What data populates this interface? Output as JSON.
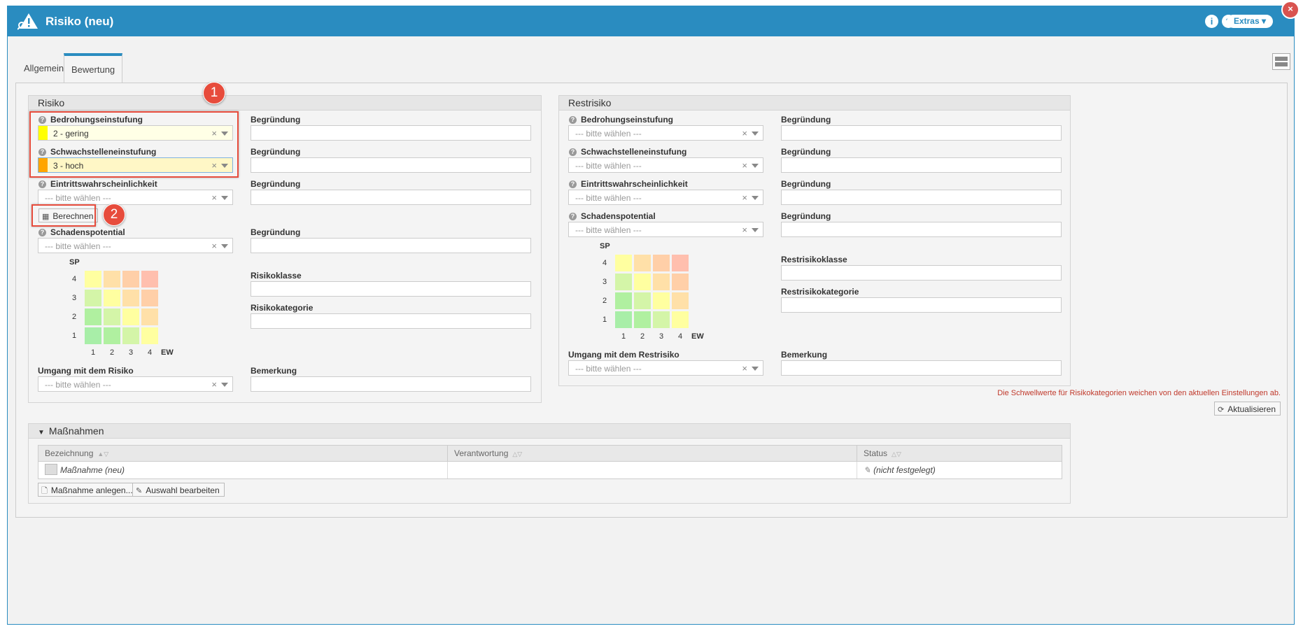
{
  "window": {
    "title": "Risiko (neu)",
    "info_icon": "info-icon",
    "help_icon": "help-icon",
    "extras_label": "Extras",
    "close_icon": "close-icon"
  },
  "tabs": [
    {
      "label": "Allgemein",
      "active": false
    },
    {
      "label": "Bewertung",
      "active": true
    }
  ],
  "risiko": {
    "header": "Risiko",
    "bedrohung": {
      "label": "Bedrohungseinstufung",
      "value": "2 - gering",
      "color": "#ffff00"
    },
    "bedrohung_begruendung": "Begründung",
    "schwachstelle": {
      "label": "Schwachstelleneinstufung",
      "value": "3 - hoch",
      "color": "#ffa500"
    },
    "schwachstelle_begruendung": "Begründung",
    "eintritt": {
      "label": "Eintrittswahrscheinlichkeit",
      "placeholder": "--- bitte wählen ---"
    },
    "eintritt_begruendung": "Begründung",
    "berechnen_label": "Berechnen",
    "schaden": {
      "label": "Schadenspotential",
      "placeholder": "--- bitte wählen ---"
    },
    "schaden_begruendung": "Begründung",
    "risikoklasse_label": "Risikoklasse",
    "risikokategorie_label": "Risikokategorie",
    "umgang": {
      "label": "Umgang mit dem Risiko",
      "placeholder": "--- bitte wählen ---"
    },
    "bemerkung_label": "Bemerkung"
  },
  "matrix": {
    "y_axis_label": "SP",
    "x_axis_label": "EW",
    "y_ticks": [
      "4",
      "3",
      "2",
      "1"
    ],
    "x_ticks": [
      "1",
      "2",
      "3",
      "4"
    ],
    "colors": [
      [
        "#ffffa0",
        "#ffe0a8",
        "#ffcfa8",
        "#ffbfae"
      ],
      [
        "#d4f5a8",
        "#ffffa0",
        "#ffe0a8",
        "#ffcfa8"
      ],
      [
        "#b0f0a0",
        "#d4f5a8",
        "#ffffa0",
        "#ffe0a8"
      ],
      [
        "#a8eea8",
        "#b0f0a0",
        "#d4f5a8",
        "#ffffa0"
      ]
    ]
  },
  "restrisiko": {
    "header": "Restrisiko",
    "bedrohung": {
      "label": "Bedrohungseinstufung",
      "placeholder": "--- bitte wählen ---"
    },
    "schwachstelle": {
      "label": "Schwachstelleneinstufung",
      "placeholder": "--- bitte wählen ---"
    },
    "eintritt": {
      "label": "Eintrittswahrscheinlichkeit",
      "placeholder": "--- bitte wählen ---"
    },
    "schaden": {
      "label": "Schadenspotential",
      "placeholder": "--- bitte wählen ---"
    },
    "begruendung_label": "Begründung",
    "restrisikoklasse_label": "Restrisikoklasse",
    "restrisikokategorie_label": "Restrisikokategorie",
    "umgang": {
      "label": "Umgang mit dem Restrisiko",
      "placeholder": "--- bitte wählen ---"
    },
    "bemerkung_label": "Bemerkung"
  },
  "warning": "Die Schwellwerte für Risikokategorien weichen von den aktuellen Einstellungen ab.",
  "aktualisieren_label": "Aktualisieren",
  "massnahmen": {
    "header": "Maßnahmen",
    "columns": [
      "Bezeichnung",
      "Verantwortung",
      "Status"
    ],
    "rows": [
      {
        "bezeichnung": "Maßnahme (neu)",
        "verantwortung": "",
        "status": "(nicht festgelegt)"
      }
    ],
    "anlegen_label": "Maßnahme anlegen...",
    "auswahl_label": "Auswahl bearbeiten"
  },
  "annotations": {
    "badge1": "1",
    "badge2": "2"
  }
}
